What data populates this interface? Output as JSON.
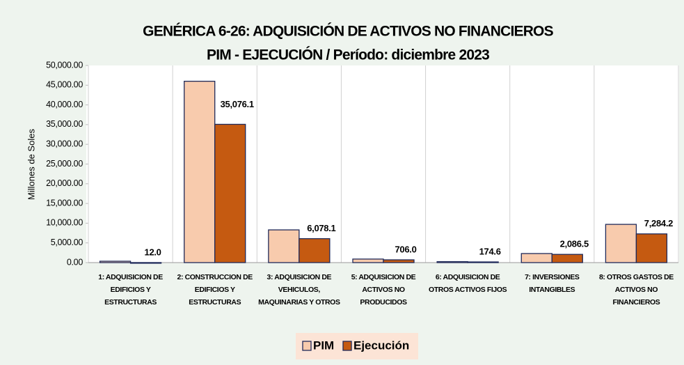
{
  "chart_data": {
    "type": "bar",
    "title": "GENÉRICA 6-26: ADQUISICIÓN DE ACTIVOS NO FINANCIEROS",
    "subtitle": "PIM - EJECUCIÓN / Período:  diciembre 2023",
    "y_label": "Millones de Soles",
    "categories": [
      "1: ADQUISICION DE EDIFICIOS Y ESTRUCTURAS",
      "2: CONSTRUCCION DE EDIFICIOS Y ESTRUCTURAS",
      "3: ADQUISICION DE VEHICULOS, MAQUINARIAS Y OTROS",
      "5: ADQUISICION DE ACTIVOS NO PRODUCIDOS",
      "6: ADQUISICION DE OTROS ACTIVOS FIJOS",
      "7: INVERSIONES INTANGIBLES",
      "8: OTROS GASTOS DE ACTIVOS NO FINANCIEROS"
    ],
    "series": [
      {
        "name": "PIM",
        "color": "#f8cbad",
        "values": [
          350,
          46000,
          8300,
          900,
          250,
          2300,
          9700
        ]
      },
      {
        "name": "Ejecución",
        "color": "#c55a11",
        "values": [
          12.0,
          35076.1,
          6078.1,
          706.0,
          174.6,
          2086.5,
          7284.2
        ],
        "value_labels": [
          "12.0",
          "35,076.1",
          "6,078.1",
          "706.0",
          "174.6",
          "2,086.5",
          "7,284.2"
        ]
      }
    ],
    "ylim": [
      0,
      50000
    ],
    "yticks": [
      {
        "value": 0,
        "label": "0.00"
      },
      {
        "value": 5000,
        "label": "5,000.00"
      },
      {
        "value": 10000,
        "label": "10,000.00"
      },
      {
        "value": 15000,
        "label": "15,000.00"
      },
      {
        "value": 20000,
        "label": "20,000.00"
      },
      {
        "value": 25000,
        "label": "25,000.00"
      },
      {
        "value": 30000,
        "label": "30,000.00"
      },
      {
        "value": 35000,
        "label": "35,000.00"
      },
      {
        "value": 40000,
        "label": "40,000.00"
      },
      {
        "value": 45000,
        "label": "45,000.00"
      },
      {
        "value": 50000,
        "label": "50,000.00"
      }
    ],
    "legend": "bottom"
  }
}
